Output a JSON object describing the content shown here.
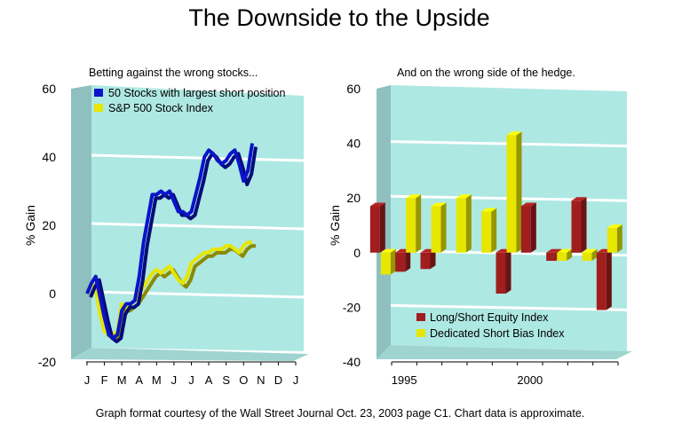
{
  "page": {
    "title": "The Downside to the Upside",
    "footnote": "Graph format courtesy of the Wall Street Journal Oct. 23, 2003 page C1. Chart data is approximate."
  },
  "colors": {
    "panel_face": "#aee8e2",
    "panel_side": "#8ec0c0",
    "panel_floor": "#9fd4d0",
    "gridline": "#ffffff",
    "blue_series": "#0a14c8",
    "yellow_series": "#e6e600",
    "red_series": "#a01e1e"
  },
  "chart_data": [
    {
      "type": "line",
      "subtitle": "Betting against the wrong stocks...",
      "ylabel": "% Gain",
      "ylim": [
        -20,
        60
      ],
      "yticks": [
        -20,
        0,
        20,
        40,
        60
      ],
      "xlim": [
        0,
        12
      ],
      "xticks": [
        {
          "label": "J",
          "x": 0
        },
        {
          "label": "F",
          "x": 1
        },
        {
          "label": "M",
          "x": 2
        },
        {
          "label": "A",
          "x": 3
        },
        {
          "label": "M",
          "x": 4
        },
        {
          "label": "J",
          "x": 5
        },
        {
          "label": "J",
          "x": 6
        },
        {
          "label": "A",
          "x": 7
        },
        {
          "label": "S",
          "x": 8
        },
        {
          "label": "O",
          "x": 9
        },
        {
          "label": "N",
          "x": 10
        },
        {
          "label": "D",
          "x": 11
        },
        {
          "label": "J",
          "x": 12
        }
      ],
      "grid": true,
      "legend_position": "top-left",
      "series": [
        {
          "name": "50 Stocks with largest short position",
          "color": "#0a14c8",
          "x": [
            0.0,
            0.25,
            0.5,
            0.75,
            1.0,
            1.25,
            1.5,
            1.75,
            2.0,
            2.25,
            2.5,
            2.75,
            3.0,
            3.25,
            3.5,
            3.75,
            4.0,
            4.25,
            4.5,
            4.75,
            5.0,
            5.25,
            5.5,
            5.75,
            6.0,
            6.25,
            6.5,
            6.75,
            7.0,
            7.25,
            7.5,
            7.75,
            8.0,
            8.25,
            8.5,
            8.75,
            9.0,
            9.25,
            9.5
          ],
          "y": [
            0,
            3,
            5,
            -1,
            -7,
            -12,
            -13,
            -12,
            -5,
            -3,
            -3,
            -2,
            5,
            15,
            22,
            29,
            29,
            30,
            29,
            30,
            27,
            24,
            24,
            23,
            24,
            29,
            34,
            40,
            42,
            41,
            39,
            38,
            39,
            41,
            42,
            38,
            33,
            36,
            44
          ]
        },
        {
          "name": "S&P 500 Stock Index",
          "color": "#e6e600",
          "x": [
            0.0,
            0.25,
            0.5,
            0.75,
            1.0,
            1.25,
            1.5,
            1.75,
            2.0,
            2.25,
            2.5,
            2.75,
            3.0,
            3.25,
            3.5,
            3.75,
            4.0,
            4.25,
            4.5,
            4.75,
            5.0,
            5.25,
            5.5,
            5.75,
            6.0,
            6.25,
            6.5,
            6.75,
            7.0,
            7.25,
            7.5,
            7.75,
            8.0,
            8.25,
            8.5,
            8.75,
            9.0,
            9.25,
            9.5
          ],
          "y": [
            0,
            3,
            1,
            -6,
            -11,
            -12,
            -12,
            -11,
            -3,
            -4,
            -3,
            -2,
            0,
            2,
            4,
            6,
            7,
            6,
            7,
            8,
            6,
            4,
            3,
            5,
            9,
            10,
            11,
            12,
            12,
            13,
            13,
            13,
            14,
            14,
            13,
            12,
            14,
            15,
            15
          ]
        }
      ]
    },
    {
      "type": "bar",
      "subtitle": "And on the wrong side of the hedge.",
      "ylabel": "% Gain",
      "ylim": [
        -40,
        60
      ],
      "yticks": [
        -40,
        -20,
        0,
        20,
        40,
        60
      ],
      "xlim": [
        1994.5,
        2003.5
      ],
      "xticks": [
        {
          "label": "1995",
          "x": 1995
        },
        {
          "label": "2000",
          "x": 2000
        }
      ],
      "grid": true,
      "legend_position": "bottom-left",
      "categories": [
        1994,
        1995,
        1996,
        1997,
        1998,
        1999,
        2000,
        2001,
        2002,
        2003
      ],
      "series": [
        {
          "name": "Long/Short Equity Index",
          "color": "#a01e1e",
          "values": [
            17,
            -7,
            -6,
            0,
            0,
            -15,
            17,
            -3,
            19,
            -21
          ]
        },
        {
          "name": "Dedicated Short Bias Index",
          "color": "#e6e600",
          "values": [
            -8,
            20,
            17,
            20,
            15,
            43,
            0,
            -3,
            -3,
            9
          ]
        }
      ]
    }
  ]
}
